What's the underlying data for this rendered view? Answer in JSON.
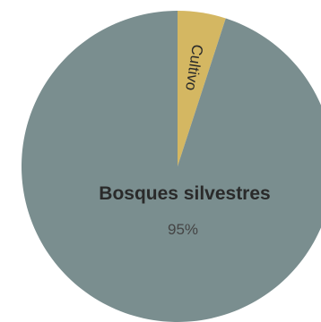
{
  "chart_data": {
    "type": "pie",
    "slices": [
      {
        "label": "Bosques silvestres",
        "value": 95,
        "value_label": "95%",
        "color": "#7a8e8f"
      },
      {
        "label": "Cultivo",
        "value": 5,
        "value_label": "",
        "color": "#d4b762"
      }
    ]
  }
}
